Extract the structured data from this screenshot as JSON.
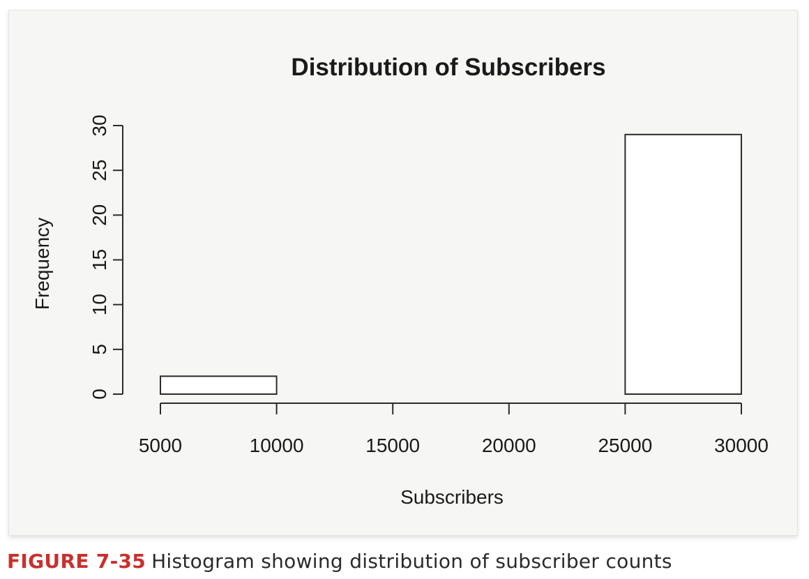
{
  "chart_data": {
    "type": "bar",
    "title": "Distribution of Subscribers",
    "xlabel": "Subscribers",
    "ylabel": "Frequency",
    "bins": [
      {
        "from": 5000,
        "to": 10000,
        "count": 2
      },
      {
        "from": 10000,
        "to": 15000,
        "count": 0
      },
      {
        "from": 15000,
        "to": 20000,
        "count": 0
      },
      {
        "from": 20000,
        "to": 25000,
        "count": 0
      },
      {
        "from": 25000,
        "to": 30000,
        "count": 29
      }
    ],
    "xlim": [
      5000,
      30000
    ],
    "ylim": [
      0,
      30
    ],
    "x_ticks": [
      5000,
      10000,
      15000,
      20000,
      25000,
      30000
    ],
    "y_ticks": [
      0,
      5,
      10,
      15,
      20,
      25,
      30
    ],
    "grid": false,
    "bar_fill": "#ffffff",
    "bar_stroke": "#2b2b2b"
  },
  "caption": {
    "label": "FIGURE 7-35",
    "text": "Histogram showing distribution of subscriber counts"
  }
}
